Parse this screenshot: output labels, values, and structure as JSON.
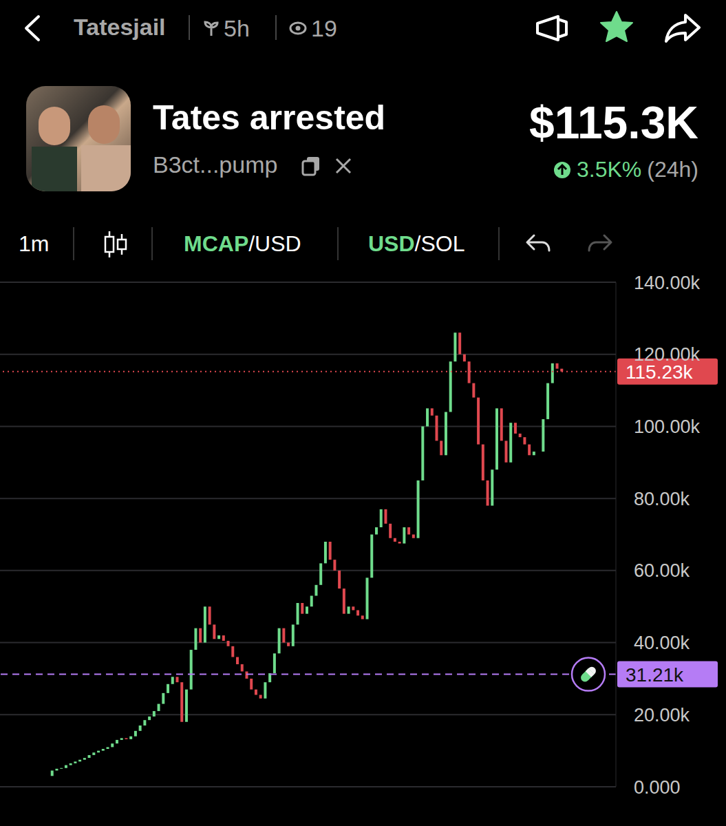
{
  "header": {
    "channel": "Tatesjail",
    "age": "5h",
    "views": "19",
    "title": "Tates arrested",
    "address": "B3ct...pump",
    "price": "$115.3K",
    "change": "3.5K%",
    "change_period": "(24h)"
  },
  "toolbar": {
    "interval": "1m",
    "mode_active": "MCAP",
    "mode_rest": "/USD",
    "currency_active": "USD",
    "currency_rest": "/SOL"
  },
  "chart_data": {
    "type": "candlestick",
    "colors": [
      "#6fdc8c",
      "#e0484f"
    ],
    "values": [
      3000,
      4500,
      5000,
      5200,
      6000,
      6500,
      7000,
      7500,
      8000,
      8800,
      9500,
      10000,
      10500,
      11000,
      12000,
      13000,
      13500,
      13200,
      14000,
      15500,
      17000,
      18500,
      19500,
      21000,
      23000,
      26000,
      28500,
      30500,
      29000,
      18000,
      27000,
      38000,
      44000,
      40000,
      50000,
      45000,
      41000,
      42000,
      40500,
      39000,
      36000,
      34000,
      32000,
      30000,
      27000,
      25500,
      24500,
      29000,
      31500,
      37000,
      44000,
      40000,
      39000,
      45000,
      51000,
      48000,
      50000,
      53000,
      56000,
      62000,
      68000,
      63000,
      60000,
      55000,
      48000,
      50000,
      49000,
      47500,
      46500,
      58000,
      70000,
      72000,
      77000,
      73000,
      69000,
      68000,
      67500,
      72000,
      70000,
      69000,
      85000,
      100000,
      105000,
      103000,
      96000,
      92000,
      104000,
      118000,
      126000,
      120000,
      118000,
      112000,
      108000,
      95000,
      85000,
      78000,
      88000,
      105000,
      96000,
      90000,
      101000,
      98000,
      97000,
      95000,
      92000,
      93000,
      93000,
      102000,
      112000,
      117500,
      116000,
      115230
    ],
    "ylim": [
      0,
      140000
    ],
    "yticks": [
      {
        "value": 0,
        "label": "0.000"
      },
      {
        "value": 20000,
        "label": "20.00k"
      },
      {
        "value": 40000,
        "label": "40.00k"
      },
      {
        "value": 60000,
        "label": "60.00k"
      },
      {
        "value": 80000,
        "label": "80.00k"
      },
      {
        "value": 100000,
        "label": "100.00k"
      },
      {
        "value": 120000,
        "label": "120.00k"
      },
      {
        "value": 140000,
        "label": "140.00k"
      }
    ],
    "grid": true,
    "tick_labels": "y",
    "reference_lines": [
      {
        "value": 115230,
        "label": "115.23k",
        "color": "#e0484f",
        "line_style": "dotted"
      },
      {
        "value": 31210,
        "label": "31.21k",
        "color": "#b57cf5",
        "line_style": "dashed",
        "marker": "pill"
      }
    ]
  }
}
